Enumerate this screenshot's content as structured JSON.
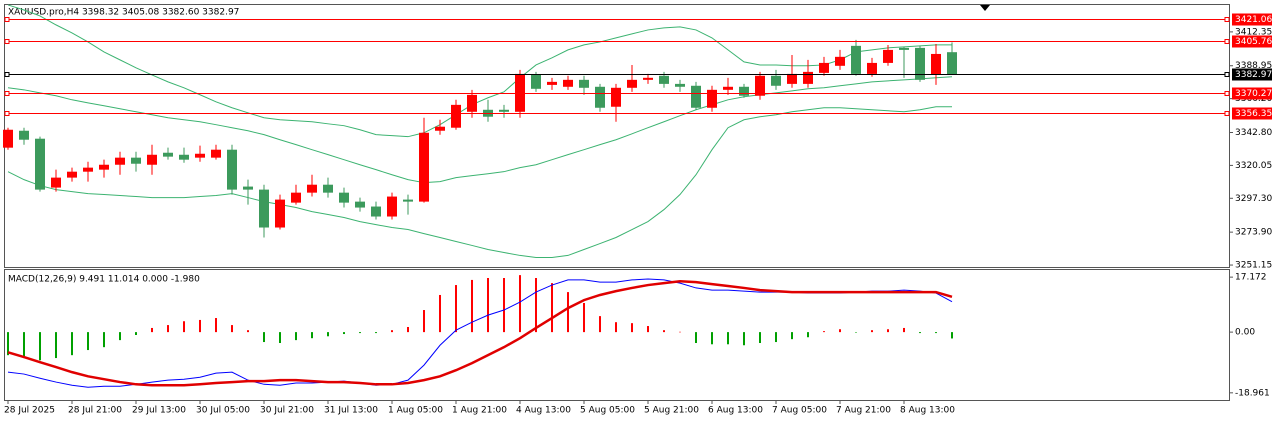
{
  "chart_data": [
    {
      "type": "candlestick",
      "title": "XAUUSD.pro,H4  3398.32 3405.08 3382.60 3382.97",
      "categories": [
        "28 Jul 2025",
        null,
        null,
        null,
        "28 Jul 21:00",
        null,
        null,
        null,
        "29 Jul 13:00",
        null,
        null,
        null,
        "30 Jul 05:00",
        null,
        null,
        null,
        "30 Jul 21:00",
        null,
        null,
        null,
        "31 Jul 13:00",
        null,
        null,
        null,
        "1 Aug 05:00",
        null,
        null,
        null,
        "1 Aug 21:00",
        null,
        null,
        null,
        "4 Aug 13:00",
        null,
        null,
        null,
        "5 Aug 05:00",
        null,
        null,
        null,
        "5 Aug 21:00",
        null,
        null,
        null,
        "6 Aug 13:00",
        null,
        null,
        null,
        "7 Aug 05:00",
        null,
        null,
        null,
        "7 Aug 21:00",
        null,
        null,
        null,
        "8 Aug 13:00",
        null,
        null,
        null
      ],
      "open": [
        3332.3,
        3344.0,
        3338.5,
        3304.7,
        3311.6,
        3315.7,
        3317.1,
        3320.5,
        3325.4,
        3320.5,
        3328.8,
        3327.4,
        3325.4,
        3325.4,
        3330.9,
        3305.4,
        3303.3,
        3277.1,
        3294.3,
        3301.2,
        3306.7,
        3301.2,
        3295.0,
        3291.6,
        3284.7,
        3296.4,
        3295.0,
        3344.0,
        3346.1,
        3357.1,
        3358.5,
        3358.5,
        3357.1,
        3382.6,
        3375.7,
        3374.4,
        3379.2,
        3374.4,
        3360.6,
        3373.7,
        3379.2,
        3382.0,
        3376.4,
        3375.1,
        3359.9,
        3372.3,
        3374.4,
        3368.2,
        3382.0,
        3376.4,
        3376.4,
        3384.0,
        3388.9,
        3402.7,
        3383.3,
        3390.9,
        3401.3,
        3401.3,
        3382.6,
        3398.32
      ],
      "high": [
        3346.1,
        3346.1,
        3339.9,
        3317.1,
        3318.5,
        3322.6,
        3324.0,
        3329.5,
        3329.5,
        3334.3,
        3332.3,
        3332.3,
        3333.7,
        3334.3,
        3334.3,
        3310.2,
        3306.7,
        3299.8,
        3306.7,
        3313.6,
        3311.6,
        3304.7,
        3297.8,
        3295.0,
        3301.2,
        3299.8,
        3353.0,
        3351.6,
        3365.4,
        3372.3,
        3365.4,
        3361.9,
        3386.1,
        3384.7,
        3380.6,
        3382.0,
        3382.0,
        3376.4,
        3376.4,
        3389.5,
        3383.3,
        3384.7,
        3379.2,
        3377.8,
        3375.1,
        3380.6,
        3376.4,
        3384.7,
        3386.1,
        3396.4,
        3393.0,
        3395.1,
        3399.9,
        3406.8,
        3394.4,
        3403.3,
        3402.0,
        3402.7,
        3404.0,
        3405.08
      ],
      "low": [
        3330.9,
        3334.3,
        3301.9,
        3301.9,
        3308.8,
        3308.8,
        3311.6,
        3313.6,
        3315.7,
        3313.6,
        3324.0,
        3321.9,
        3322.6,
        3324.0,
        3299.8,
        3292.9,
        3270.2,
        3275.7,
        3292.9,
        3298.5,
        3297.8,
        3290.9,
        3288.1,
        3282.6,
        3282.6,
        3286.0,
        3294.3,
        3341.2,
        3344.7,
        3353.0,
        3350.2,
        3353.0,
        3353.0,
        3370.9,
        3372.3,
        3372.3,
        3368.8,
        3357.1,
        3350.2,
        3370.9,
        3376.4,
        3373.7,
        3370.9,
        3358.5,
        3357.1,
        3368.8,
        3366.8,
        3365.4,
        3372.3,
        3373.7,
        3373.7,
        3382.0,
        3386.1,
        3382.0,
        3381.3,
        3388.9,
        3380.6,
        3377.8,
        3375.7,
        3382.6
      ],
      "close": [
        3344.7,
        3337.8,
        3303.3,
        3311.6,
        3315.7,
        3318.5,
        3320.5,
        3325.4,
        3321.2,
        3327.4,
        3326.1,
        3324.0,
        3328.1,
        3330.9,
        3303.3,
        3303.3,
        3277.1,
        3296.4,
        3301.2,
        3306.7,
        3301.2,
        3294.3,
        3290.9,
        3284.7,
        3298.5,
        3295.0,
        3342.6,
        3346.8,
        3361.9,
        3368.8,
        3353.7,
        3357.1,
        3383.3,
        3373.0,
        3377.8,
        3379.2,
        3373.7,
        3359.9,
        3373.7,
        3379.2,
        3380.6,
        3376.4,
        3374.4,
        3359.9,
        3372.3,
        3374.4,
        3368.2,
        3382.0,
        3375.1,
        3383.3,
        3384.7,
        3390.9,
        3395.1,
        3383.3,
        3390.9,
        3399.9,
        3399.9,
        3379.2,
        3397.1,
        3382.97
      ],
      "up_color": "#ff0000",
      "down_color": "#3c9a5c",
      "bands": [
        {
          "color": "#3cb371",
          "values": [
            3431.0,
            3427.5,
            3423.4,
            3417.2,
            3411.6,
            3405.4,
            3398.5,
            3393.0,
            3387.5,
            3382.6,
            3377.8,
            3373.7,
            3368.9,
            3364.0,
            3359.9,
            3356.4,
            3353.0,
            3351.6,
            3350.9,
            3350.2,
            3348.8,
            3347.5,
            3344.7,
            3341.3,
            3340.6,
            3339.9,
            3342.6,
            3348.2,
            3355.1,
            3362.0,
            3366.8,
            3370.9,
            3380.6,
            3389.5,
            3394.4,
            3399.9,
            3403.4,
            3405.4,
            3408.2,
            3411.0,
            3413.7,
            3415.1,
            3415.8,
            3413.7,
            3408.2,
            3399.9,
            3391.6,
            3389.5,
            3389.5,
            3388.9,
            3388.9,
            3389.5,
            3393.0,
            3398.5,
            3399.9,
            3401.3,
            3402.0,
            3402.7,
            3403.4,
            3403.4
          ]
        },
        {
          "color": "#3cb371",
          "values": [
            3373.7,
            3372.3,
            3370.2,
            3368.2,
            3365.4,
            3363.3,
            3361.3,
            3359.2,
            3357.1,
            3355.1,
            3353.0,
            3351.6,
            3350.2,
            3348.2,
            3346.1,
            3344.0,
            3341.3,
            3337.8,
            3334.4,
            3330.9,
            3327.5,
            3324.0,
            3320.5,
            3317.1,
            3313.6,
            3310.2,
            3308.1,
            3308.8,
            3311.6,
            3313.0,
            3314.3,
            3315.7,
            3318.5,
            3320.5,
            3324.0,
            3327.5,
            3330.9,
            3334.4,
            3337.8,
            3341.9,
            3346.1,
            3350.2,
            3354.4,
            3358.5,
            3362.0,
            3365.4,
            3367.5,
            3368.9,
            3370.2,
            3371.6,
            3373.0,
            3373.7,
            3375.1,
            3376.4,
            3377.8,
            3378.5,
            3379.2,
            3379.9,
            3380.6,
            3381.3
          ]
        },
        {
          "color": "#3cb371",
          "values": [
            3315.7,
            3310.2,
            3306.1,
            3303.3,
            3301.9,
            3300.5,
            3299.9,
            3299.2,
            3298.5,
            3297.8,
            3297.8,
            3297.8,
            3298.5,
            3299.2,
            3300.5,
            3297.8,
            3295.0,
            3293.0,
            3290.9,
            3288.1,
            3286.1,
            3284.0,
            3281.2,
            3279.1,
            3277.1,
            3275.7,
            3272.9,
            3270.2,
            3267.4,
            3264.7,
            3261.9,
            3259.8,
            3257.8,
            3256.4,
            3256.4,
            3257.8,
            3261.9,
            3266.0,
            3270.2,
            3275.7,
            3281.2,
            3289.5,
            3299.9,
            3313.6,
            3330.9,
            3346.1,
            3351.6,
            3353.7,
            3355.1,
            3357.1,
            3358.5,
            3359.9,
            3359.9,
            3359.2,
            3358.5,
            3357.8,
            3357.1,
            3358.5,
            3360.6,
            3360.6
          ]
        }
      ],
      "levels": [
        {
          "value": 3421.06,
          "color": "#ff0000"
        },
        {
          "value": 3405.76,
          "color": "#ff0000"
        },
        {
          "value": 3382.97,
          "color": "#000000"
        },
        {
          "value": 3370.27,
          "color": "#ff0000"
        },
        {
          "value": 3356.35,
          "color": "#ff0000"
        }
      ],
      "ylim": [
        3249.8,
        3434.4
      ],
      "yticks": [
        3412.35,
        3388.95,
        {
          "value": 3366.2,
          "label": "3366.20"
        },
        {
          "value": 3342.8,
          "label": "3342.80"
        },
        3320.05,
        {
          "value": 3297.3,
          "label": "3297.30"
        },
        {
          "value": 3273.9,
          "label": "3273.90"
        },
        3251.15
      ]
    },
    {
      "type": "macd",
      "title": "MACD(12,26,9) 9.491 11.014 0.000 -1.980",
      "values": [
        -7.2,
        -8.1,
        -8.8,
        -8.1,
        -7.2,
        -5.6,
        -4.7,
        -2.5,
        -0.9,
        1.3,
        2.2,
        3.4,
        3.8,
        4.4,
        2.2,
        0.6,
        -3.1,
        -3.4,
        -2.5,
        -1.9,
        -1.3,
        -0.6,
        -0.3,
        -0.3,
        0.6,
        1.6,
        6.9,
        11.6,
        14.7,
        16.3,
        16.9,
        16.9,
        17.8,
        16.9,
        15.3,
        12.5,
        9.1,
        5.0,
        3.1,
        2.8,
        1.9,
        0.6,
        0.1,
        -3.4,
        -3.8,
        -3.8,
        -4.1,
        -3.4,
        -3.1,
        -2.2,
        -1.6,
        0.3,
        0.9,
        -0.1,
        0.6,
        0.9,
        1.3,
        -0.3,
        -0.3,
        -1.98
      ],
      "up_color": "#ff0000",
      "down_color": "#00a000",
      "series": [
        {
          "color": "#0000ff",
          "values": [
            -12.5,
            -13.1,
            -14.4,
            -15.6,
            -16.6,
            -17.2,
            -16.9,
            -16.9,
            -16.3,
            -15.6,
            -15.0,
            -14.7,
            -14.1,
            -12.8,
            -12.5,
            -15.0,
            -16.3,
            -16.6,
            -15.9,
            -15.9,
            -15.6,
            -15.3,
            -15.9,
            -16.6,
            -16.3,
            -15.0,
            -10.3,
            -4.1,
            0.6,
            3.1,
            5.3,
            6.9,
            9.4,
            12.5,
            14.7,
            16.3,
            16.3,
            15.6,
            15.6,
            16.3,
            16.6,
            16.3,
            15.3,
            13.8,
            13.1,
            13.1,
            12.8,
            12.5,
            12.5,
            12.5,
            12.2,
            12.2,
            12.2,
            12.5,
            12.8,
            12.8,
            13.1,
            12.8,
            12.2,
            9.491
          ]
        },
        {
          "color": "#e00000",
          "values": [
            -6.3,
            -7.8,
            -9.4,
            -10.9,
            -12.5,
            -13.8,
            -14.7,
            -15.6,
            -16.3,
            -16.6,
            -16.6,
            -16.6,
            -16.3,
            -15.9,
            -15.6,
            -15.3,
            -15.3,
            -15.0,
            -15.0,
            -15.3,
            -15.6,
            -15.6,
            -15.9,
            -16.3,
            -16.3,
            -15.9,
            -15.0,
            -13.8,
            -11.9,
            -9.7,
            -7.2,
            -4.7,
            -1.9,
            1.3,
            4.4,
            7.5,
            10.0,
            11.6,
            12.8,
            13.8,
            14.7,
            15.3,
            15.9,
            15.6,
            15.0,
            14.4,
            13.8,
            13.1,
            12.8,
            12.5,
            12.5,
            12.5,
            12.5,
            12.5,
            12.5,
            12.5,
            12.5,
            12.5,
            12.5,
            11.014
          ]
        }
      ],
      "ylim": [
        -21.2,
        19.4
      ],
      "yticks": [
        17.172,
        {
          "value": 0,
          "label": "0.00"
        },
        -18.961
      ]
    }
  ]
}
